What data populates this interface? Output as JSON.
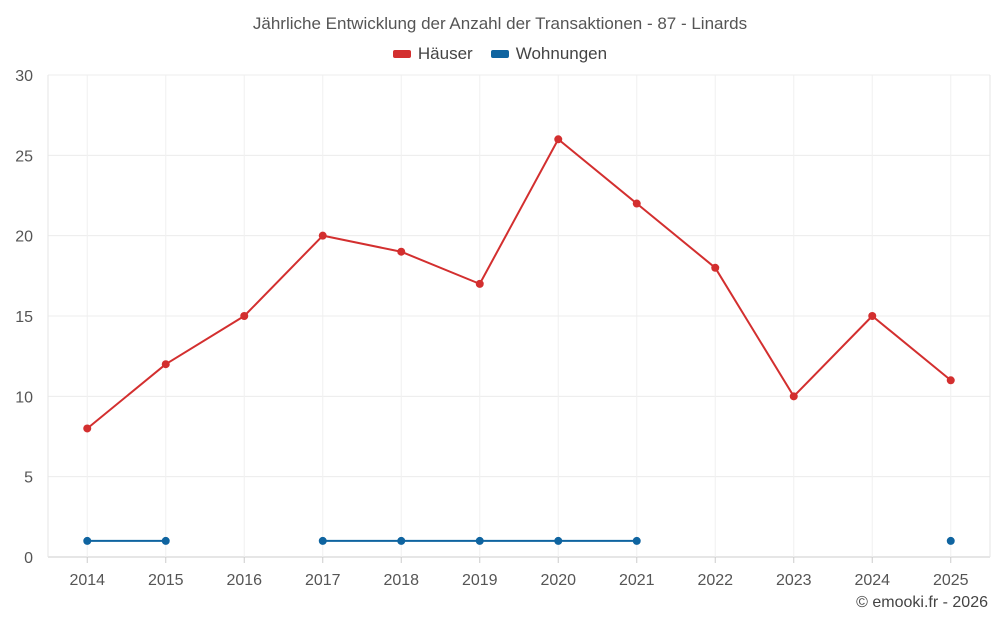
{
  "chart_data": {
    "type": "line",
    "title": "Jährliche Entwicklung der Anzahl der Transaktionen - 87 - Linards",
    "categories": [
      "2014",
      "2015",
      "2016",
      "2017",
      "2018",
      "2019",
      "2020",
      "2021",
      "2022",
      "2023",
      "2024",
      "2025"
    ],
    "series": [
      {
        "name": "Häuser",
        "color": "#d32f2f",
        "values": [
          8,
          12,
          15,
          20,
          19,
          17,
          26,
          22,
          18,
          10,
          15,
          11
        ]
      },
      {
        "name": "Wohnungen",
        "color": "#0f64a0",
        "values": [
          1,
          1,
          null,
          1,
          1,
          1,
          1,
          1,
          null,
          null,
          null,
          1
        ]
      }
    ],
    "xlabel": "",
    "ylabel": "",
    "ylim": [
      0,
      30
    ],
    "yticks": [
      0,
      5,
      10,
      15,
      20,
      25,
      30
    ],
    "grid": true,
    "legend_position": "top-center"
  },
  "credit": "© emooki.fr - 2026"
}
